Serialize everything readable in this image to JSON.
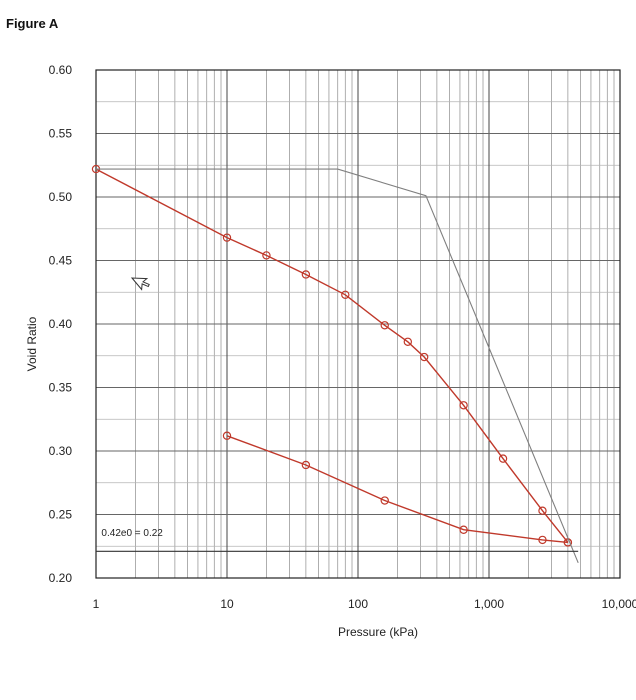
{
  "figure": {
    "title": "Figure A"
  },
  "chart_data": {
    "type": "line",
    "xlabel": "Pressure (kPa)",
    "ylabel": "Void Ratio",
    "xscale": "log",
    "xlim": [
      1,
      10000
    ],
    "ylim": [
      0.2,
      0.6
    ],
    "grid": true,
    "x_tick_labels": [
      "1",
      "10",
      "100",
      "1,000",
      "10,000"
    ],
    "x_tick_values": [
      1,
      10,
      100,
      1000,
      10000
    ],
    "y_tick_labels": [
      "0.60",
      "0.55",
      "0.50",
      "0.45",
      "0.40",
      "0.35",
      "0.30",
      "0.25",
      "0.20"
    ],
    "y_tick_values": [
      0.6,
      0.55,
      0.5,
      0.45,
      0.4,
      0.35,
      0.3,
      0.25,
      0.2
    ],
    "series": [
      {
        "role": "loading",
        "color": "#c0392b",
        "markers": true,
        "x": [
          1,
          10,
          20,
          40,
          80,
          160,
          240,
          320,
          640,
          1280,
          2560,
          4000
        ],
        "y": [
          0.522,
          0.468,
          0.454,
          0.439,
          0.423,
          0.399,
          0.386,
          0.374,
          0.336,
          0.294,
          0.253,
          0.228
        ]
      },
      {
        "role": "unloading",
        "color": "#c0392b",
        "markers": true,
        "x": [
          10,
          40,
          160,
          640,
          2560,
          4000
        ],
        "y": [
          0.312,
          0.289,
          0.261,
          0.238,
          0.23,
          0.228
        ]
      },
      {
        "role": "construction",
        "color": "#7f7f7f",
        "markers": false,
        "x": [
          1,
          70,
          330,
          4800
        ],
        "y": [
          0.522,
          0.522,
          0.501,
          0.212
        ]
      },
      {
        "role": "horizontal-line",
        "color": "#333333",
        "markers": false,
        "x": [
          1,
          4800
        ],
        "y": [
          0.221,
          0.221
        ]
      }
    ],
    "annotations": [
      {
        "text": "0.42e0 = 0.22",
        "x": 1.1,
        "y": 0.233
      }
    ]
  }
}
